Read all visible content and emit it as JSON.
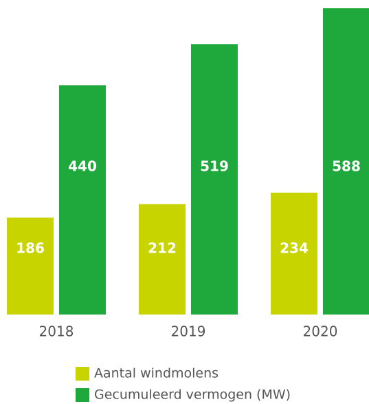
{
  "chart_data": {
    "type": "bar",
    "categories": [
      "2018",
      "2019",
      "2020"
    ],
    "series": [
      {
        "name": "Aantal windmolens",
        "color": "#c8d400",
        "values": [
          186,
          212,
          234
        ]
      },
      {
        "name": "Gecumuleerd vermogen (MW)",
        "color": "#1fa83c",
        "values": [
          440,
          519,
          588
        ]
      }
    ]
  }
}
